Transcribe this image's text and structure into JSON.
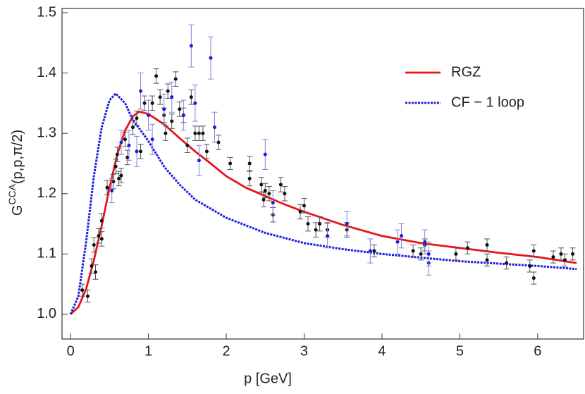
{
  "chart_data": {
    "type": "line",
    "xlabel": "p [GeV]",
    "ylabel": {
      "base": "G",
      "sup": "CCA",
      "rest": "(p,p,π/2)"
    },
    "xlim": [
      -0.11,
      6.59
    ],
    "ylim": [
      0.959,
      1.507
    ],
    "xticks": [
      0,
      1,
      2,
      3,
      4,
      5,
      6
    ],
    "yticks": [
      {
        "value": 1.0,
        "label": "1.0"
      },
      {
        "value": 1.1,
        "label": "1.1"
      },
      {
        "value": 1.2,
        "label": "1.2"
      },
      {
        "value": 1.3,
        "label": "1.3"
      },
      {
        "value": 1.4,
        "label": "1.4"
      },
      {
        "value": 1.5,
        "label": "1.5"
      }
    ],
    "legend": "upper right",
    "series": [
      {
        "name": "RGZ",
        "color": "#e8141a",
        "dash": false,
        "x": [
          0,
          0.1,
          0.2,
          0.3,
          0.4,
          0.5,
          0.6,
          0.7,
          0.8,
          0.88,
          1.0,
          1.2,
          1.4,
          1.6,
          1.8,
          2.0,
          2.25,
          2.5,
          2.75,
          3.0,
          3.5,
          4.0,
          4.5,
          5.0,
          5.5,
          6.0,
          6.5
        ],
        "values": [
          1.0,
          1.012,
          1.042,
          1.09,
          1.147,
          1.21,
          1.265,
          1.305,
          1.328,
          1.336,
          1.332,
          1.315,
          1.292,
          1.27,
          1.25,
          1.229,
          1.21,
          1.196,
          1.182,
          1.17,
          1.148,
          1.13,
          1.118,
          1.11,
          1.102,
          1.095,
          1.085
        ]
      },
      {
        "name": "CF − 1 loop",
        "color": "#1a1ae0",
        "dash": true,
        "x": [
          0,
          0.1,
          0.2,
          0.3,
          0.4,
          0.5,
          0.58,
          0.7,
          0.8,
          0.9,
          1.0,
          1.2,
          1.4,
          1.6,
          1.8,
          2.0,
          2.5,
          3.0,
          3.5,
          4.0,
          4.5,
          5.0,
          5.5,
          6.0,
          6.5
        ],
        "values": [
          1.0,
          1.03,
          1.12,
          1.23,
          1.31,
          1.355,
          1.366,
          1.35,
          1.322,
          1.305,
          1.287,
          1.245,
          1.215,
          1.19,
          1.175,
          1.16,
          1.135,
          1.118,
          1.108,
          1.1,
          1.094,
          1.088,
          1.084,
          1.08,
          1.075
        ]
      },
      {
        "color": "#111111",
        "markers": true,
        "errcolor": "#555555",
        "x": [
          0.15,
          0.22,
          0.27,
          0.3,
          0.32,
          0.36,
          0.4,
          0.4,
          0.47,
          0.55,
          0.58,
          0.6,
          0.62,
          0.65,
          0.7,
          0.73,
          0.8,
          0.85,
          0.9,
          0.95,
          1.05,
          1.1,
          1.15,
          1.2,
          1.22,
          1.25,
          1.3,
          1.35,
          1.4,
          1.45,
          1.5,
          1.55,
          1.6,
          1.65,
          1.7,
          1.75,
          1.9,
          2.05,
          2.3,
          2.3,
          2.45,
          2.48,
          2.5,
          2.55,
          2.6,
          2.7,
          2.75,
          2.95,
          3.0,
          3.05,
          3.15,
          3.2,
          3.3,
          3.55,
          3.9,
          4.4,
          4.5,
          4.55,
          4.95,
          5.1,
          5.35,
          5.35,
          5.6,
          5.9,
          5.95,
          5.95,
          6.2,
          6.3,
          6.35,
          6.45
        ],
        "values": [
          1.04,
          1.03,
          1.08,
          1.115,
          1.07,
          1.13,
          1.155,
          1.125,
          1.21,
          1.22,
          1.245,
          1.265,
          1.225,
          1.23,
          1.29,
          1.26,
          1.31,
          1.325,
          1.27,
          1.35,
          1.35,
          1.395,
          1.36,
          1.33,
          1.3,
          1.37,
          1.32,
          1.39,
          1.34,
          1.33,
          1.28,
          1.36,
          1.3,
          1.3,
          1.3,
          1.27,
          1.285,
          1.25,
          1.25,
          1.225,
          1.215,
          1.19,
          1.205,
          1.2,
          1.165,
          1.215,
          1.2,
          1.17,
          1.18,
          1.15,
          1.14,
          1.15,
          1.14,
          1.14,
          1.105,
          1.105,
          1.1,
          1.115,
          1.1,
          1.11,
          1.115,
          1.09,
          1.085,
          1.08,
          1.105,
          1.06,
          1.095,
          1.1,
          1.09,
          1.1
        ],
        "errors": [
          0.01,
          0.01,
          0.012,
          0.012,
          0.012,
          0.012,
          0.012,
          0.012,
          0.012,
          0.012,
          0.012,
          0.012,
          0.012,
          0.012,
          0.012,
          0.012,
          0.012,
          0.012,
          0.012,
          0.012,
          0.012,
          0.012,
          0.012,
          0.012,
          0.012,
          0.012,
          0.012,
          0.012,
          0.012,
          0.012,
          0.012,
          0.012,
          0.012,
          0.012,
          0.012,
          0.012,
          0.012,
          0.01,
          0.012,
          0.012,
          0.012,
          0.012,
          0.012,
          0.012,
          0.012,
          0.012,
          0.012,
          0.012,
          0.012,
          0.012,
          0.012,
          0.012,
          0.012,
          0.012,
          0.01,
          0.01,
          0.01,
          0.01,
          0.01,
          0.01,
          0.01,
          0.01,
          0.01,
          0.01,
          0.01,
          0.01,
          0.01,
          0.01,
          0.01,
          0.01
        ]
      },
      {
        "color": "#1a1ae0",
        "markers": true,
        "errcolor": "#8080e0",
        "x": [
          0.53,
          0.65,
          0.75,
          0.85,
          0.9,
          1.0,
          1.05,
          1.2,
          1.3,
          1.45,
          1.55,
          1.6,
          1.65,
          1.8,
          1.85,
          2.5,
          2.6,
          3.3,
          3.55,
          3.85,
          4.2,
          4.25,
          4.55,
          4.6,
          4.6
        ],
        "values": [
          1.205,
          1.285,
          1.28,
          1.27,
          1.37,
          1.33,
          1.29,
          1.34,
          1.36,
          1.33,
          1.445,
          1.35,
          1.255,
          1.425,
          1.31,
          1.265,
          1.185,
          1.13,
          1.15,
          1.105,
          1.12,
          1.13,
          1.12,
          1.085,
          1.1
        ],
        "errors": [
          0.02,
          0.02,
          0.025,
          0.025,
          0.03,
          0.025,
          0.025,
          0.025,
          0.025,
          0.025,
          0.035,
          0.03,
          0.025,
          0.035,
          0.025,
          0.025,
          0.02,
          0.02,
          0.02,
          0.02,
          0.02,
          0.02,
          0.02,
          0.02,
          0.02
        ]
      }
    ]
  }
}
